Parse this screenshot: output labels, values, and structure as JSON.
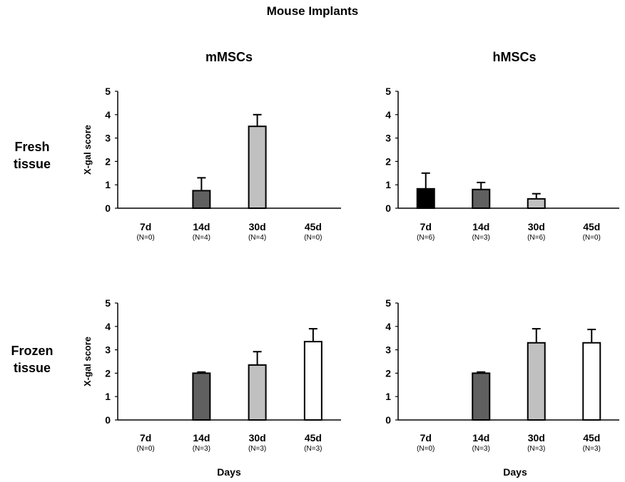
{
  "title": "Mouse Implants",
  "columns": [
    "mMSCs",
    "hMSCs"
  ],
  "rows": [
    [
      "Fresh",
      "tissue"
    ],
    [
      "Frozen",
      "tissue"
    ]
  ],
  "xlabel": "Days",
  "chart_data": [
    {
      "type": "bar",
      "panel": "mMSCs / Fresh tissue",
      "ylabel": "X-gal score",
      "ylim": [
        0,
        5
      ],
      "yticks": [
        "0",
        "1",
        "2",
        "3",
        "4",
        "5"
      ],
      "categories": [
        "7d",
        "14d",
        "30d",
        "45d"
      ],
      "counts": [
        "(N=0)",
        "(N=4)",
        "(N=4)",
        "(N=0)"
      ],
      "values": [
        null,
        0.75,
        3.5,
        null
      ],
      "errors": [
        null,
        0.55,
        0.5,
        null
      ],
      "colors": [
        "#000000",
        "#606060",
        "#c0c0c0",
        "#ffffff"
      ]
    },
    {
      "type": "bar",
      "panel": "hMSCs / Fresh tissue",
      "ylabel": "",
      "ylim": [
        0,
        5
      ],
      "yticks": [
        "0",
        "1",
        "2",
        "3",
        "4",
        "5"
      ],
      "categories": [
        "7d",
        "14d",
        "30d",
        "45d"
      ],
      "counts": [
        "(N=6)",
        "(N=3)",
        "(N=6)",
        "(N=0)"
      ],
      "values": [
        0.83,
        0.8,
        0.4,
        null
      ],
      "errors": [
        0.67,
        0.3,
        0.22,
        null
      ],
      "colors": [
        "#000000",
        "#606060",
        "#c0c0c0",
        "#ffffff"
      ]
    },
    {
      "type": "bar",
      "panel": "mMSCs / Frozen tissue",
      "ylabel": "X-gal score",
      "ylim": [
        0,
        5
      ],
      "yticks": [
        "0",
        "1",
        "2",
        "3",
        "4",
        "5"
      ],
      "categories": [
        "7d",
        "14d",
        "30d",
        "45d"
      ],
      "counts": [
        "(N=0)",
        "(N=3)",
        "(N=3)",
        "(N=3)"
      ],
      "values": [
        null,
        2.0,
        2.35,
        3.35
      ],
      "errors": [
        null,
        0.05,
        0.57,
        0.55
      ],
      "colors": [
        "#000000",
        "#606060",
        "#c0c0c0",
        "#ffffff"
      ]
    },
    {
      "type": "bar",
      "panel": "hMSCs / Frozen tissue",
      "ylabel": "",
      "ylim": [
        0,
        5
      ],
      "yticks": [
        "0",
        "1",
        "2",
        "3",
        "4",
        "5"
      ],
      "categories": [
        "7d",
        "14d",
        "30d",
        "45d"
      ],
      "counts": [
        "(N=0)",
        "(N=3)",
        "(N=3)",
        "(N=3)"
      ],
      "values": [
        null,
        2.0,
        3.3,
        3.3
      ],
      "errors": [
        null,
        0.05,
        0.6,
        0.57
      ],
      "colors": [
        "#000000",
        "#606060",
        "#c0c0c0",
        "#ffffff"
      ]
    }
  ]
}
